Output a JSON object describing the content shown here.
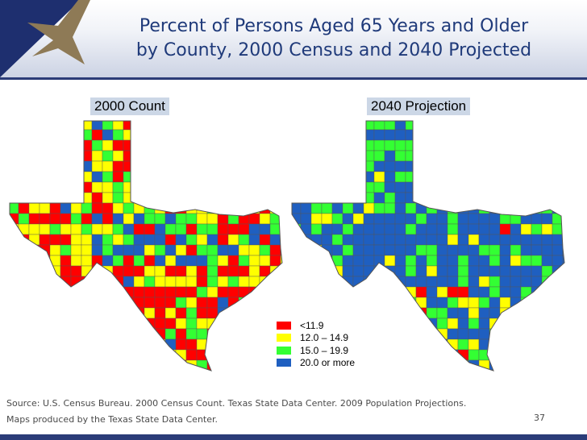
{
  "slide": {
    "title_line1": "Percent of Persons Aged 65 Years and Older",
    "title_line2": "by County, 2000 Census and 2040 Projected",
    "page_number": "37"
  },
  "maps": {
    "left_label": "2000 Count",
    "right_label": "2040 Projection"
  },
  "legend": [
    {
      "label": "<11.9",
      "color": "#ff0000"
    },
    {
      "label": "12.0 – 14.9",
      "color": "#ffff00"
    },
    {
      "label": "15.0 – 19.9",
      "color": "#33ff33"
    },
    {
      "label": "20.0 or more",
      "color": "#1f5fc0"
    }
  ],
  "source": {
    "line1": "Source: U.S. Census Bureau. 2000 Census Count. Texas State Data Center. 2009 Population Projections.",
    "line2": "Maps produced by the Texas State Data Center."
  },
  "colors": {
    "title": "#1f3a7a",
    "navy": "#1e2f6f",
    "star": "#8e7a56",
    "label_bg": "#ccd7e6",
    "county_border": "#555555"
  }
}
